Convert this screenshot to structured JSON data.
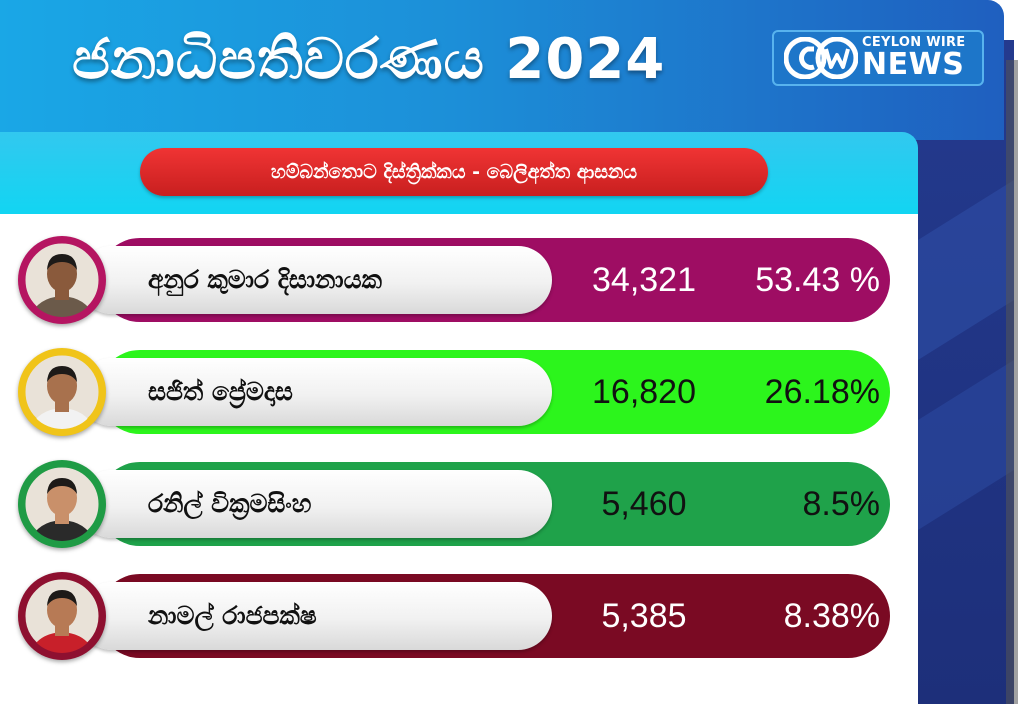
{
  "header": {
    "title": "ජනාධිපතිවරණය 2024",
    "colors": {
      "banner_start": "#1aa7e6",
      "banner_end": "#1f5fbf"
    }
  },
  "logo": {
    "mark": "CW",
    "top_text": "CEYLON WIRE",
    "bottom_text": "NEWS"
  },
  "subtitle": {
    "text": "හම්බන්තොට  දිස්ත්‍රික්කය - බෙලිඅත්ත ආසනය",
    "color": "#e02a2a"
  },
  "candidates": [
    {
      "name": "අනුර කුමාර දිසානායක",
      "votes": "34,321",
      "percent": "53.43 %",
      "bar_color": "#9e0d63",
      "text_color": "#ffffff",
      "avatar_ring": "#b51561",
      "avatar_icon": "portrait-icon"
    },
    {
      "name": "සජිත් ප්‍රේමදාස",
      "votes": "16,820",
      "percent": "26.18%",
      "bar_color": "#2cf51c",
      "text_color": "#111111",
      "avatar_ring": "#f0c419",
      "avatar_icon": "portrait-icon"
    },
    {
      "name": "රනිල් වික්‍රමසිංහ",
      "votes": "5,460",
      "percent": "8.5%",
      "bar_color": "#1fa24a",
      "text_color": "#111111",
      "avatar_ring": "#1f9b45",
      "avatar_icon": "portrait-icon"
    },
    {
      "name": "නාමල් රාජපක්ෂ",
      "votes": "5,385",
      "percent": "8.38%",
      "bar_color": "#7a0a23",
      "text_color": "#ffffff",
      "avatar_ring": "#8e1030",
      "avatar_icon": "portrait-icon"
    }
  ]
}
